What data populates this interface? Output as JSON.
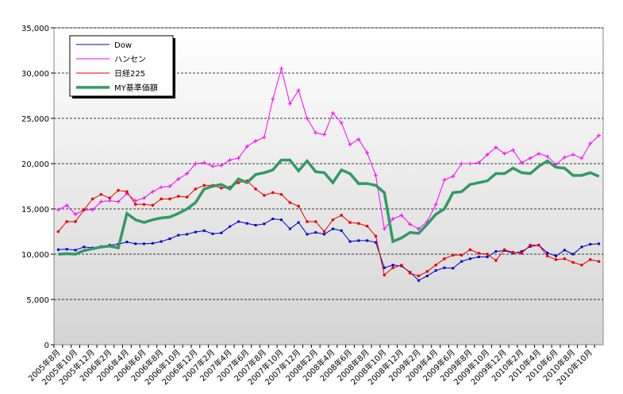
{
  "chart_data": {
    "type": "line",
    "categories": [
      "2005年8月",
      null,
      "2005年10月",
      null,
      "2005年12月",
      null,
      "2006年2月",
      null,
      "2006年4月",
      null,
      "2006年6月",
      null,
      "2006年8月",
      null,
      "2006年10月",
      null,
      "2006年12月",
      null,
      "2007年2月",
      null,
      "2007年4月",
      null,
      "2007年6月",
      null,
      "2007年8月",
      null,
      "2007年10月",
      null,
      "2007年12月",
      null,
      "2008年2月",
      null,
      "2008年4月",
      null,
      "2008年6月",
      null,
      "2008年8月",
      null,
      "2008年10月",
      null,
      "2008年12月",
      null,
      "2009年2月",
      null,
      "2009年4月",
      null,
      "2009年6月",
      null,
      "2009年8月",
      null,
      "2009年10月",
      null,
      "2009年12月",
      null,
      "2010年2月",
      null,
      "2010年4月",
      null,
      "2010年6月",
      null,
      "2010年8月",
      null,
      "2010年10月",
      null
    ],
    "series": [
      {
        "name": "Dow",
        "color": "#0000cc",
        "values": [
          10500,
          10550,
          10450,
          10800,
          10700,
          10850,
          11000,
          11100,
          11350,
          11150,
          11150,
          11200,
          11400,
          11700,
          12100,
          12200,
          12450,
          12600,
          12250,
          12350,
          13050,
          13600,
          13400,
          13200,
          13350,
          13900,
          13800,
          12800,
          13500,
          12200,
          12400,
          12200,
          12800,
          12600,
          11400,
          11500,
          11500,
          11300,
          8500,
          8800,
          8700,
          8000,
          7100,
          7600,
          8200,
          8500,
          8450,
          9200,
          9500,
          9700,
          9700,
          10300,
          10400,
          10100,
          10300,
          10850,
          11000,
          10150,
          9800,
          10450,
          10000,
          10800,
          11100,
          11150
        ]
      },
      {
        "name": "ハンセン",
        "color": "#ff00ff",
        "values": [
          14900,
          15400,
          14400,
          14900,
          14900,
          15800,
          15900,
          15800,
          16700,
          15900,
          16200,
          16900,
          17400,
          17500,
          18300,
          18900,
          20000,
          20100,
          19700,
          19800,
          20400,
          20600,
          21900,
          22500,
          22900,
          27100,
          30500,
          26600,
          28100,
          25000,
          23400,
          23200,
          25600,
          24500,
          22100,
          22700,
          21200,
          18700,
          12800,
          13900,
          14300,
          13300,
          12800,
          13600,
          15500,
          18200,
          18600,
          20000,
          20000,
          20100,
          21000,
          21800,
          21100,
          21500,
          20100,
          20600,
          21100,
          20800,
          19900,
          20700,
          21000,
          20600,
          22200,
          23100
        ]
      },
      {
        "name": "日経225",
        "color": "#ee0000",
        "values": [
          12500,
          13600,
          13600,
          14900,
          16100,
          16600,
          16200,
          17050,
          16900,
          15500,
          15500,
          15400,
          16100,
          16100,
          16400,
          16300,
          17200,
          17600,
          17600,
          17300,
          17400,
          17900,
          18100,
          17200,
          16500,
          16800,
          16600,
          15700,
          15300,
          13600,
          13600,
          12500,
          13800,
          14300,
          13500,
          13400,
          13100,
          12000,
          7700,
          8500,
          8800,
          7900,
          7600,
          8100,
          8800,
          9500,
          9900,
          9900,
          10500,
          10100,
          10000,
          9300,
          10500,
          10200,
          10100,
          11000,
          11000,
          9800,
          9400,
          9500,
          9100,
          8800,
          9400,
          9200
        ]
      },
      {
        "name": "MY基準価額",
        "color": "#339966",
        "values": [
          10000,
          10050,
          10000,
          10400,
          10600,
          10800,
          10900,
          10700,
          14500,
          13800,
          13500,
          13800,
          14000,
          14100,
          14500,
          15000,
          15700,
          17200,
          17500,
          17700,
          17200,
          18300,
          17900,
          18800,
          19000,
          19300,
          20400,
          20400,
          19200,
          20300,
          19100,
          19000,
          17900,
          19300,
          18900,
          17800,
          17800,
          17600,
          16800,
          11400,
          11800,
          12400,
          12300,
          13300,
          14400,
          15000,
          16800,
          16900,
          17700,
          17900,
          18100,
          18900,
          18900,
          19500,
          19000,
          18900,
          19700,
          20300,
          19600,
          19500,
          18700,
          18700,
          19000,
          18600
        ]
      }
    ],
    "ylim": [
      0,
      35000
    ],
    "yticks": [
      0,
      {
        "value": 5000,
        "label": "5,000"
      },
      {
        "value": 10000,
        "label": "10,000"
      },
      {
        "value": 15000,
        "label": "15,000"
      },
      {
        "value": 20000,
        "label": "20,000"
      },
      {
        "value": 25000,
        "label": "25,000"
      },
      {
        "value": 30000,
        "label": "30,000"
      },
      {
        "value": 35000,
        "label": "35,000"
      }
    ],
    "grid": true,
    "legend": "top-left"
  }
}
